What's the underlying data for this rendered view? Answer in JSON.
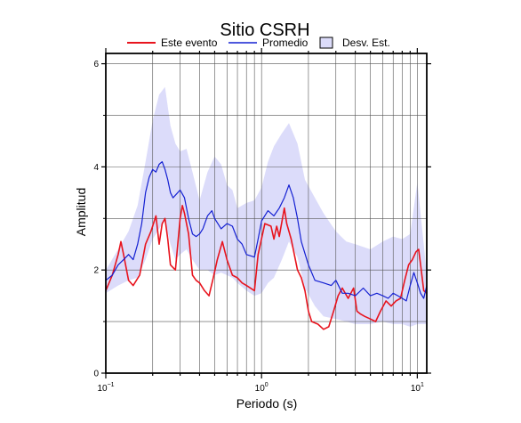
{
  "chart_data": {
    "type": "line",
    "title": "Sitio CSRH",
    "xlabel": "Periodo (s)",
    "ylabel": "Amplitud",
    "xscale": "log",
    "xlim": [
      0.1,
      11.5
    ],
    "ylim": [
      0,
      6.2
    ],
    "grid": true,
    "legend_position": "top",
    "legend": [
      {
        "label": "Este evento",
        "color": "#e8141e",
        "kind": "line"
      },
      {
        "label": "Promedio",
        "color": "#1420d2",
        "kind": "line"
      },
      {
        "label": "Desv. Est.",
        "color": "#dcdcfa",
        "kind": "box"
      }
    ],
    "x_ticks": [
      {
        "value": 0.1,
        "base": "10",
        "exp": "−1"
      },
      {
        "value": 1,
        "base": "10",
        "exp": "0"
      },
      {
        "value": 10,
        "base": "10",
        "exp": "1"
      }
    ],
    "y_ticks": [
      {
        "value": 0,
        "label": "0"
      },
      {
        "value": 2,
        "label": "2"
      },
      {
        "value": 4,
        "label": "4"
      },
      {
        "value": 6,
        "label": "6"
      }
    ],
    "series": [
      {
        "name": "Este evento",
        "color": "#e8141e",
        "x": [
          0.1,
          0.11,
          0.12,
          0.125,
          0.13,
          0.14,
          0.15,
          0.165,
          0.18,
          0.195,
          0.21,
          0.22,
          0.23,
          0.24,
          0.25,
          0.26,
          0.28,
          0.3,
          0.31,
          0.32,
          0.34,
          0.36,
          0.38,
          0.4,
          0.43,
          0.46,
          0.49,
          0.52,
          0.56,
          0.6,
          0.65,
          0.7,
          0.75,
          0.8,
          0.9,
          0.95,
          1.05,
          1.15,
          1.2,
          1.25,
          1.3,
          1.4,
          1.45,
          1.55,
          1.7,
          1.8,
          1.9,
          2.0,
          2.1,
          2.3,
          2.5,
          2.7,
          2.9,
          3.1,
          3.3,
          3.6,
          3.9,
          4.1,
          4.3,
          4.6,
          5.0,
          5.4,
          5.8,
          6.3,
          6.8,
          7.3,
          7.8,
          8.3,
          8.8,
          9.3,
          9.8,
          10.2,
          10.6,
          11.0,
          11.5
        ],
        "y": [
          1.6,
          1.9,
          2.3,
          2.55,
          2.3,
          1.8,
          1.7,
          1.9,
          2.5,
          2.75,
          3.05,
          2.5,
          2.9,
          3.0,
          2.6,
          2.1,
          2.0,
          3.0,
          3.25,
          3.1,
          2.7,
          1.9,
          1.8,
          1.75,
          1.6,
          1.5,
          1.85,
          2.2,
          2.55,
          2.2,
          1.9,
          1.85,
          1.75,
          1.7,
          1.6,
          2.3,
          2.9,
          2.85,
          2.6,
          2.85,
          2.65,
          3.2,
          2.9,
          2.6,
          2.0,
          1.85,
          1.6,
          1.2,
          1.0,
          0.95,
          0.85,
          0.9,
          1.2,
          1.5,
          1.65,
          1.45,
          1.65,
          1.2,
          1.15,
          1.1,
          1.05,
          1.0,
          1.2,
          1.4,
          1.3,
          1.4,
          1.45,
          1.8,
          2.1,
          2.2,
          2.35,
          2.4,
          2.0,
          1.6,
          1.55
        ]
      },
      {
        "name": "Promedio",
        "color": "#1420d2",
        "x": [
          0.1,
          0.11,
          0.12,
          0.13,
          0.14,
          0.15,
          0.16,
          0.17,
          0.18,
          0.19,
          0.2,
          0.21,
          0.22,
          0.23,
          0.24,
          0.25,
          0.26,
          0.27,
          0.28,
          0.3,
          0.32,
          0.34,
          0.36,
          0.38,
          0.4,
          0.42,
          0.45,
          0.48,
          0.5,
          0.55,
          0.6,
          0.65,
          0.7,
          0.75,
          0.8,
          0.9,
          0.95,
          1.0,
          1.1,
          1.2,
          1.3,
          1.4,
          1.5,
          1.6,
          1.7,
          1.8,
          2.0,
          2.2,
          2.5,
          2.8,
          3.0,
          3.3,
          3.6,
          4.0,
          4.5,
          5.0,
          5.5,
          6.0,
          6.5,
          7.0,
          7.5,
          8.0,
          8.5,
          9.0,
          9.5,
          10.0,
          10.5,
          11.0,
          11.5
        ],
        "y": [
          1.8,
          1.9,
          2.1,
          2.2,
          2.3,
          2.2,
          2.5,
          2.9,
          3.5,
          3.8,
          3.95,
          3.9,
          4.05,
          4.1,
          3.95,
          3.75,
          3.5,
          3.4,
          3.45,
          3.55,
          3.4,
          3.0,
          2.7,
          2.65,
          2.7,
          2.8,
          3.05,
          3.15,
          3.0,
          2.8,
          2.9,
          2.85,
          2.6,
          2.5,
          2.3,
          2.25,
          2.6,
          2.95,
          3.15,
          3.05,
          3.2,
          3.4,
          3.65,
          3.4,
          3.0,
          2.55,
          2.1,
          1.8,
          1.75,
          1.7,
          1.8,
          1.55,
          1.55,
          1.5,
          1.65,
          1.5,
          1.55,
          1.5,
          1.45,
          1.55,
          1.5,
          1.45,
          1.4,
          1.7,
          1.95,
          1.75,
          1.55,
          1.45,
          1.7
        ]
      }
    ],
    "band": {
      "name": "Desv. Est.",
      "color": "#dcdcfa",
      "x": [
        0.1,
        0.12,
        0.14,
        0.16,
        0.18,
        0.2,
        0.22,
        0.24,
        0.26,
        0.28,
        0.3,
        0.33,
        0.36,
        0.4,
        0.45,
        0.5,
        0.55,
        0.6,
        0.65,
        0.7,
        0.8,
        0.9,
        1.0,
        1.1,
        1.2,
        1.35,
        1.5,
        1.7,
        1.9,
        2.2,
        2.5,
        3.0,
        3.5,
        4.0,
        5.0,
        6.0,
        7.0,
        8.0,
        9.0,
        10.0,
        11.0,
        11.5
      ],
      "upper": [
        2.0,
        2.4,
        2.75,
        3.25,
        4.1,
        4.9,
        5.4,
        5.55,
        4.8,
        4.45,
        4.3,
        4.35,
        3.9,
        3.35,
        3.9,
        4.2,
        4.05,
        3.65,
        3.55,
        3.2,
        3.3,
        3.35,
        3.6,
        4.1,
        4.4,
        4.65,
        4.85,
        4.45,
        3.75,
        3.4,
        3.1,
        2.75,
        2.55,
        2.5,
        2.4,
        2.55,
        2.65,
        2.6,
        2.7,
        3.7,
        2.5,
        1.9
      ],
      "lower": [
        1.55,
        1.7,
        1.8,
        1.85,
        2.2,
        2.6,
        2.8,
        2.95,
        2.5,
        2.2,
        2.3,
        2.4,
        2.2,
        2.0,
        2.0,
        1.9,
        1.95,
        1.9,
        1.85,
        1.75,
        1.6,
        1.5,
        1.55,
        1.75,
        1.85,
        2.2,
        2.55,
        2.25,
        1.65,
        1.3,
        1.1,
        1.05,
        1.0,
        0.95,
        0.95,
        1.0,
        0.95,
        0.95,
        0.9,
        0.95,
        0.95,
        0.95
      ]
    }
  }
}
